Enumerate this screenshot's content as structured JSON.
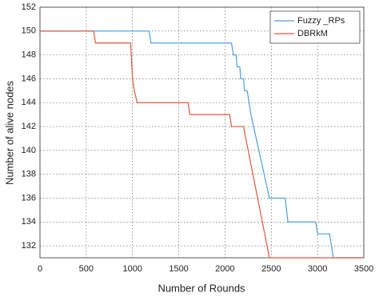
{
  "chart_data": {
    "type": "line",
    "xlabel": "Number of Rounds",
    "ylabel": "Number of alive nodes",
    "xlim": [
      0,
      3500
    ],
    "xticks": [
      0,
      500,
      1000,
      1500,
      2000,
      2500,
      3000,
      3500
    ],
    "ylim": [
      131,
      152
    ],
    "yticks": [
      132,
      134,
      136,
      138,
      140,
      142,
      144,
      146,
      148,
      150,
      152
    ],
    "grid": true,
    "legend": "top-right",
    "series": [
      {
        "name": "Fuzzy _RPs",
        "color": "#4d9ee0",
        "x": [
          0,
          1180,
          1200,
          2070,
          2090,
          2120,
          2130,
          2160,
          2170,
          2200,
          2210,
          2240,
          2260,
          2280,
          2480,
          2650,
          2680,
          2980,
          3000,
          3130,
          3170,
          3500
        ],
        "values": [
          150,
          150,
          149,
          149,
          148,
          148,
          147,
          147,
          146,
          146,
          145,
          145,
          144,
          143,
          136,
          136,
          134,
          134,
          133,
          133,
          131,
          131
        ]
      },
      {
        "name": "DBRkM",
        "color": "#d95b3a",
        "x": [
          0,
          580,
          600,
          980,
          1000,
          1020,
          1050,
          1600,
          1620,
          2050,
          2070,
          2200,
          2250,
          2480,
          3500
        ],
        "values": [
          150,
          150,
          149,
          149,
          146,
          145,
          144,
          144,
          143,
          143,
          142,
          142,
          140,
          131,
          131
        ]
      }
    ]
  }
}
